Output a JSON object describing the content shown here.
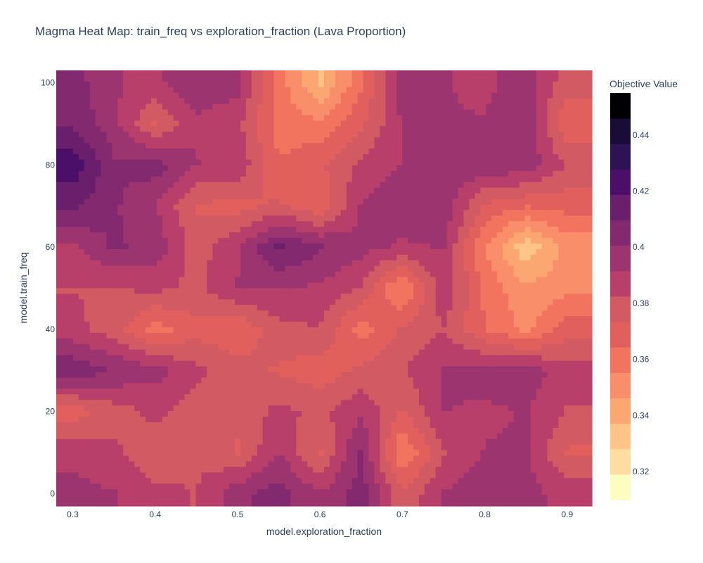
{
  "chart_data": {
    "type": "heatmap",
    "title": "Magma Heat Map: train_freq vs exploration_fraction (Lava Proportion)",
    "xlabel": "model.exploration_fraction",
    "ylabel": "model.train_freq",
    "colorbar_title": "Objective Value",
    "xlim": [
      0.28,
      0.93
    ],
    "ylim": [
      -3,
      103
    ],
    "x_ticks": [
      0.3,
      0.4,
      0.5,
      0.6,
      0.7,
      0.8,
      0.9
    ],
    "y_ticks": [
      0,
      20,
      40,
      60,
      80,
      100
    ],
    "colorbar_ticks": [
      0.32,
      0.34,
      0.36,
      0.38,
      0.4,
      0.42,
      0.44
    ],
    "zlim": [
      0.31,
      0.455
    ],
    "colorscale": "magma",
    "colors": [
      "#fcfdbf",
      "#fddea0",
      "#fec488",
      "#fca772",
      "#f98e6a",
      "#f2745f",
      "#e1605d",
      "#d25a63",
      "#b93f6b",
      "#9c3470",
      "#82296f",
      "#6a1f6c",
      "#4b0f6a",
      "#2d1254",
      "#190c37",
      "#000004"
    ],
    "x": [
      0.3,
      0.35,
      0.4,
      0.45,
      0.5,
      0.55,
      0.6,
      0.65,
      0.7,
      0.75,
      0.8,
      0.85,
      0.9
    ],
    "y": [
      0,
      10,
      20,
      30,
      40,
      50,
      60,
      70,
      80,
      90,
      100
    ],
    "z": [
      [
        0.395,
        0.392,
        0.385,
        0.382,
        0.398,
        0.405,
        0.392,
        0.405,
        0.375,
        0.392,
        0.398,
        0.395,
        0.388
      ],
      [
        0.388,
        0.385,
        0.376,
        0.382,
        0.372,
        0.392,
        0.372,
        0.402,
        0.355,
        0.382,
        0.392,
        0.393,
        0.372
      ],
      [
        0.368,
        0.378,
        0.385,
        0.378,
        0.376,
        0.385,
        0.38,
        0.39,
        0.372,
        0.392,
        0.39,
        0.392,
        0.382
      ],
      [
        0.408,
        0.4,
        0.395,
        0.385,
        0.378,
        0.372,
        0.368,
        0.375,
        0.382,
        0.392,
        0.395,
        0.398,
        0.385
      ],
      [
        0.385,
        0.378,
        0.36,
        0.37,
        0.365,
        0.38,
        0.382,
        0.36,
        0.375,
        0.382,
        0.365,
        0.352,
        0.37
      ],
      [
        0.382,
        0.382,
        0.385,
        0.38,
        0.392,
        0.392,
        0.39,
        0.382,
        0.352,
        0.39,
        0.362,
        0.348,
        0.352
      ],
      [
        0.39,
        0.402,
        0.398,
        0.378,
        0.39,
        0.412,
        0.402,
        0.395,
        0.39,
        0.392,
        0.355,
        0.33,
        0.35
      ],
      [
        0.412,
        0.402,
        0.392,
        0.372,
        0.37,
        0.375,
        0.365,
        0.392,
        0.398,
        0.398,
        0.372,
        0.365,
        0.368
      ],
      [
        0.425,
        0.402,
        0.405,
        0.392,
        0.39,
        0.365,
        0.372,
        0.385,
        0.392,
        0.398,
        0.398,
        0.398,
        0.382
      ],
      [
        0.408,
        0.395,
        0.372,
        0.39,
        0.385,
        0.36,
        0.358,
        0.372,
        0.392,
        0.392,
        0.392,
        0.398,
        0.365
      ],
      [
        0.405,
        0.392,
        0.39,
        0.398,
        0.395,
        0.36,
        0.335,
        0.362,
        0.398,
        0.392,
        0.39,
        0.395,
        0.378
      ]
    ]
  }
}
